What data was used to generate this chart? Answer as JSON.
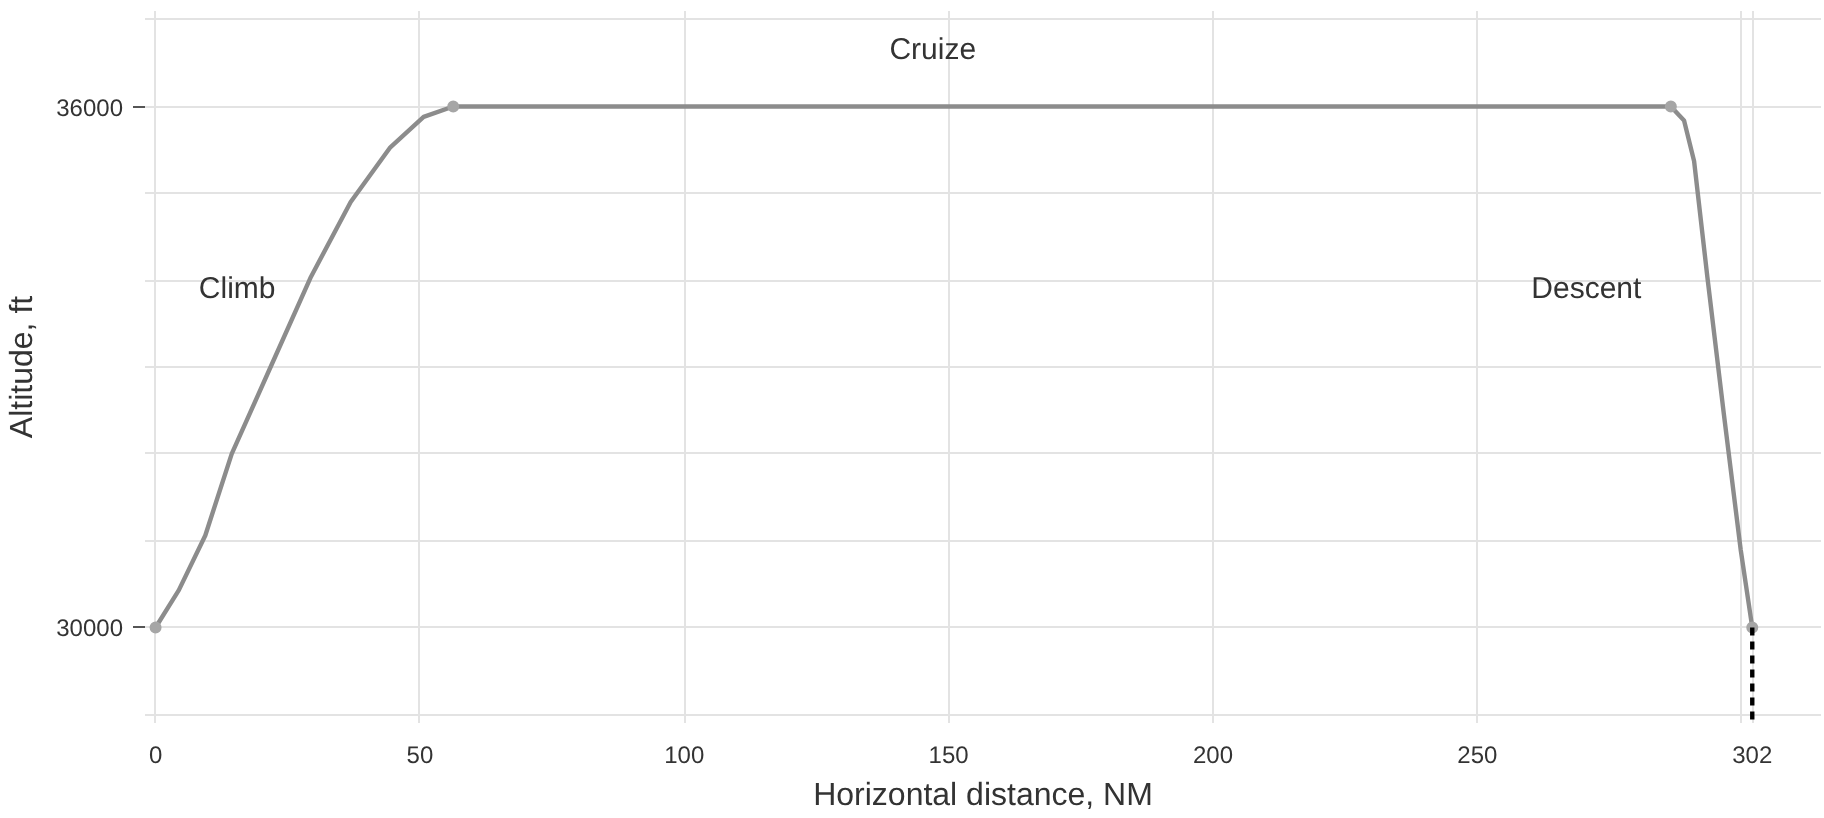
{
  "chart_data": {
    "type": "line",
    "xlabel": "Horizontal distance, NM",
    "ylabel": "Altitude, ft",
    "xlim": [
      -2,
      315
    ],
    "ylim": [
      28900,
      37100
    ],
    "xticks": [
      0,
      50,
      100,
      150,
      200,
      250,
      {
        "value": 300,
        "label": null
      },
      302
    ],
    "yticks": [
      {
        "value": 29000,
        "label": null
      },
      30000,
      {
        "value": 31000,
        "label": null
      },
      {
        "value": 32000,
        "label": null
      },
      {
        "value": 33000,
        "label": null
      },
      {
        "value": 34000,
        "label": null
      },
      {
        "value": 35000,
        "label": null
      },
      36000,
      {
        "value": 37000,
        "label": null
      }
    ],
    "grid": true,
    "line_style": "solid",
    "marker": "none",
    "series": [
      {
        "color": "#8c8c8c",
        "x": [
          0,
          4.4,
          9.4,
          14.4,
          21.9,
          29.4,
          36.9,
          44.4,
          50.7,
          56.3,
          286.6,
          289.1,
          291,
          293.5,
          296.6,
          299.8,
          302
        ],
        "values": [
          30000,
          30430,
          31060,
          32000,
          33020,
          34040,
          34900,
          35530,
          35880,
          36000,
          36000,
          35840,
          35370,
          34040,
          32470,
          30900,
          30000
        ]
      },
      {
        "type": "scatter",
        "marker": "circle",
        "color": "#a6a6a6",
        "x": [
          0,
          56.3,
          286.6,
          302
        ],
        "values": [
          30000,
          36000,
          36000,
          30000
        ]
      },
      {
        "type": "line",
        "line_style": "dashed",
        "color": "#000000",
        "x": [
          302,
          302
        ],
        "values": [
          30000,
          28900
        ]
      }
    ],
    "annotations": [
      "Climb",
      "Cruize",
      "Descent"
    ]
  }
}
